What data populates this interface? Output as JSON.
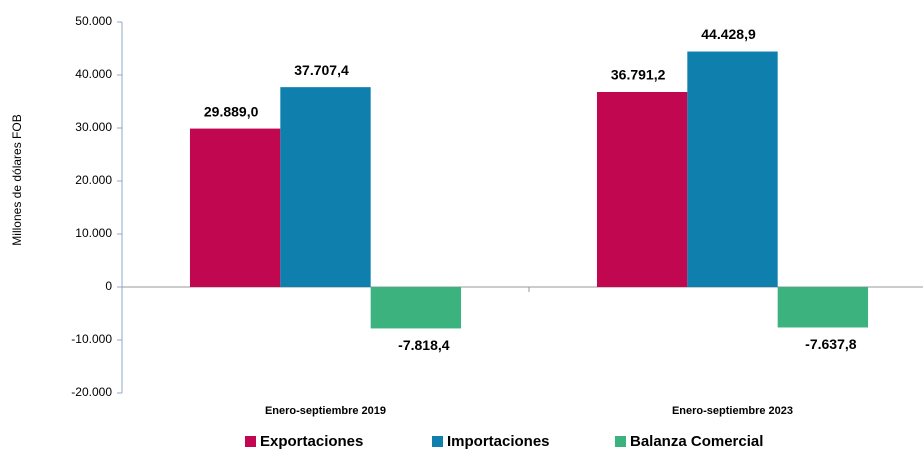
{
  "chart_data": {
    "type": "bar",
    "y_label": "Millones de dólares FOB",
    "categories": [
      "Enero-septiembre 2019",
      "Enero-septiembre 2023"
    ],
    "series": [
      {
        "name": "Exportaciones",
        "color": "#c0074f",
        "values": [
          29889.0,
          36791.2
        ],
        "value_labels": [
          "29.889,0",
          "36.791,2"
        ]
      },
      {
        "name": "Importaciones",
        "color": "#0f7fae",
        "values": [
          37707.4,
          44428.9
        ],
        "value_labels": [
          "37.707,4",
          "44.428,9"
        ]
      },
      {
        "name": "Balanza Comercial",
        "color": "#3cb37f",
        "values": [
          -7818.4,
          -7637.8
        ],
        "value_labels": [
          "-7.818,4",
          "-7.637,8"
        ]
      }
    ],
    "ylim": [
      -20000,
      50000
    ],
    "yticks": [
      {
        "value": -20000,
        "label": "-20.000"
      },
      {
        "value": -10000,
        "label": "-10.000"
      },
      0,
      {
        "value": 10000,
        "label": "10.000"
      },
      {
        "value": 20000,
        "label": "20.000"
      },
      {
        "value": 30000,
        "label": "30.000"
      },
      {
        "value": 40000,
        "label": "40.000"
      },
      {
        "value": 50000,
        "label": "50.000"
      }
    ],
    "legend": "bottom"
  }
}
